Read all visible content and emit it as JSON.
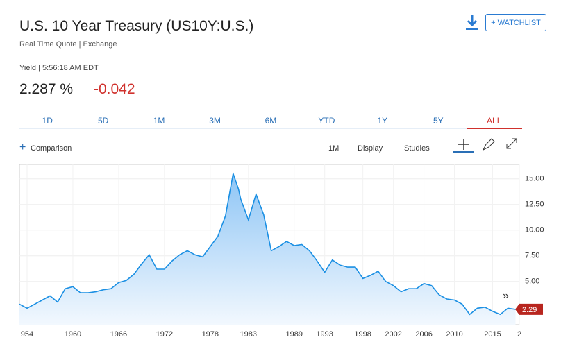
{
  "header": {
    "title": "U.S. 10 Year Treasury (US10Y:U.S.)",
    "subtitle": "Real Time Quote | Exchange",
    "yield_time": "Yield | 5:56:18 AM EDT",
    "price": "2.287",
    "price_unit": "%",
    "change": "-0.042",
    "watchlist": "+ WATCHLIST"
  },
  "tabs": [
    "1D",
    "5D",
    "1M",
    "3M",
    "6M",
    "YTD",
    "1Y",
    "5Y",
    "ALL"
  ],
  "toolbar": {
    "comparison": "Comparison",
    "interval": "1M",
    "display": "Display",
    "studies": "Studies"
  },
  "chart_data": {
    "type": "area",
    "color": "#1a8fe3",
    "x": [
      1953,
      1954,
      1955,
      1956,
      1957,
      1958,
      1959,
      1960,
      1961,
      1962,
      1963,
      1964,
      1965,
      1966,
      1967,
      1968,
      1969,
      1970,
      1971,
      1972,
      1973,
      1974,
      1975,
      1976,
      1977,
      1978,
      1979,
      1980,
      1981,
      1981.7,
      1982,
      1983,
      1984,
      1985,
      1986,
      1987,
      1988,
      1989,
      1990,
      1991,
      1992,
      1993,
      1994,
      1995,
      1996,
      1997,
      1998,
      1999,
      2000,
      2001,
      2002,
      2003,
      2004,
      2005,
      2006,
      2007,
      2008,
      2009,
      2010,
      2011,
      2012,
      2013,
      2014,
      2015,
      2016,
      2017,
      2018
    ],
    "series": [
      {
        "name": "US10Y",
        "color": "#1a8fe3",
        "values": [
          2.8,
          2.4,
          2.8,
          3.2,
          3.6,
          3.0,
          4.3,
          4.5,
          3.9,
          3.9,
          4.0,
          4.2,
          4.3,
          4.9,
          5.1,
          5.7,
          6.7,
          7.6,
          6.2,
          6.2,
          7.0,
          7.6,
          8.0,
          7.6,
          7.4,
          8.4,
          9.4,
          11.4,
          15.5,
          14.0,
          13.0,
          11.0,
          13.5,
          11.5,
          8.0,
          8.4,
          8.9,
          8.5,
          8.6,
          8.0,
          7.0,
          5.9,
          7.1,
          6.6,
          6.4,
          6.4,
          5.3,
          5.6,
          6.0,
          5.0,
          4.6,
          4.0,
          4.3,
          4.3,
          4.8,
          4.6,
          3.7,
          3.3,
          3.2,
          2.8,
          1.8,
          2.4,
          2.5,
          2.1,
          1.8,
          2.4,
          2.29
        ]
      }
    ],
    "current_value": 2.29,
    "xlim": [
      1953,
      2018.5
    ],
    "xticks": [
      {
        "value": 1954,
        "label": "954"
      },
      1960,
      1966,
      1972,
      1978,
      1983,
      1989,
      1993,
      1998,
      2002,
      2006,
      2010,
      2015,
      {
        "value": 2018.5,
        "label": "2"
      }
    ],
    "ylim": [
      0.8,
      16.4
    ],
    "yticks": [
      {
        "value": 5,
        "label": "5.00"
      },
      {
        "value": 7.5,
        "label": "7.50"
      },
      {
        "value": 10,
        "label": "10.00"
      },
      {
        "value": 12.5,
        "label": "12.50"
      },
      {
        "value": 15,
        "label": "15.00"
      }
    ],
    "grid": true
  }
}
